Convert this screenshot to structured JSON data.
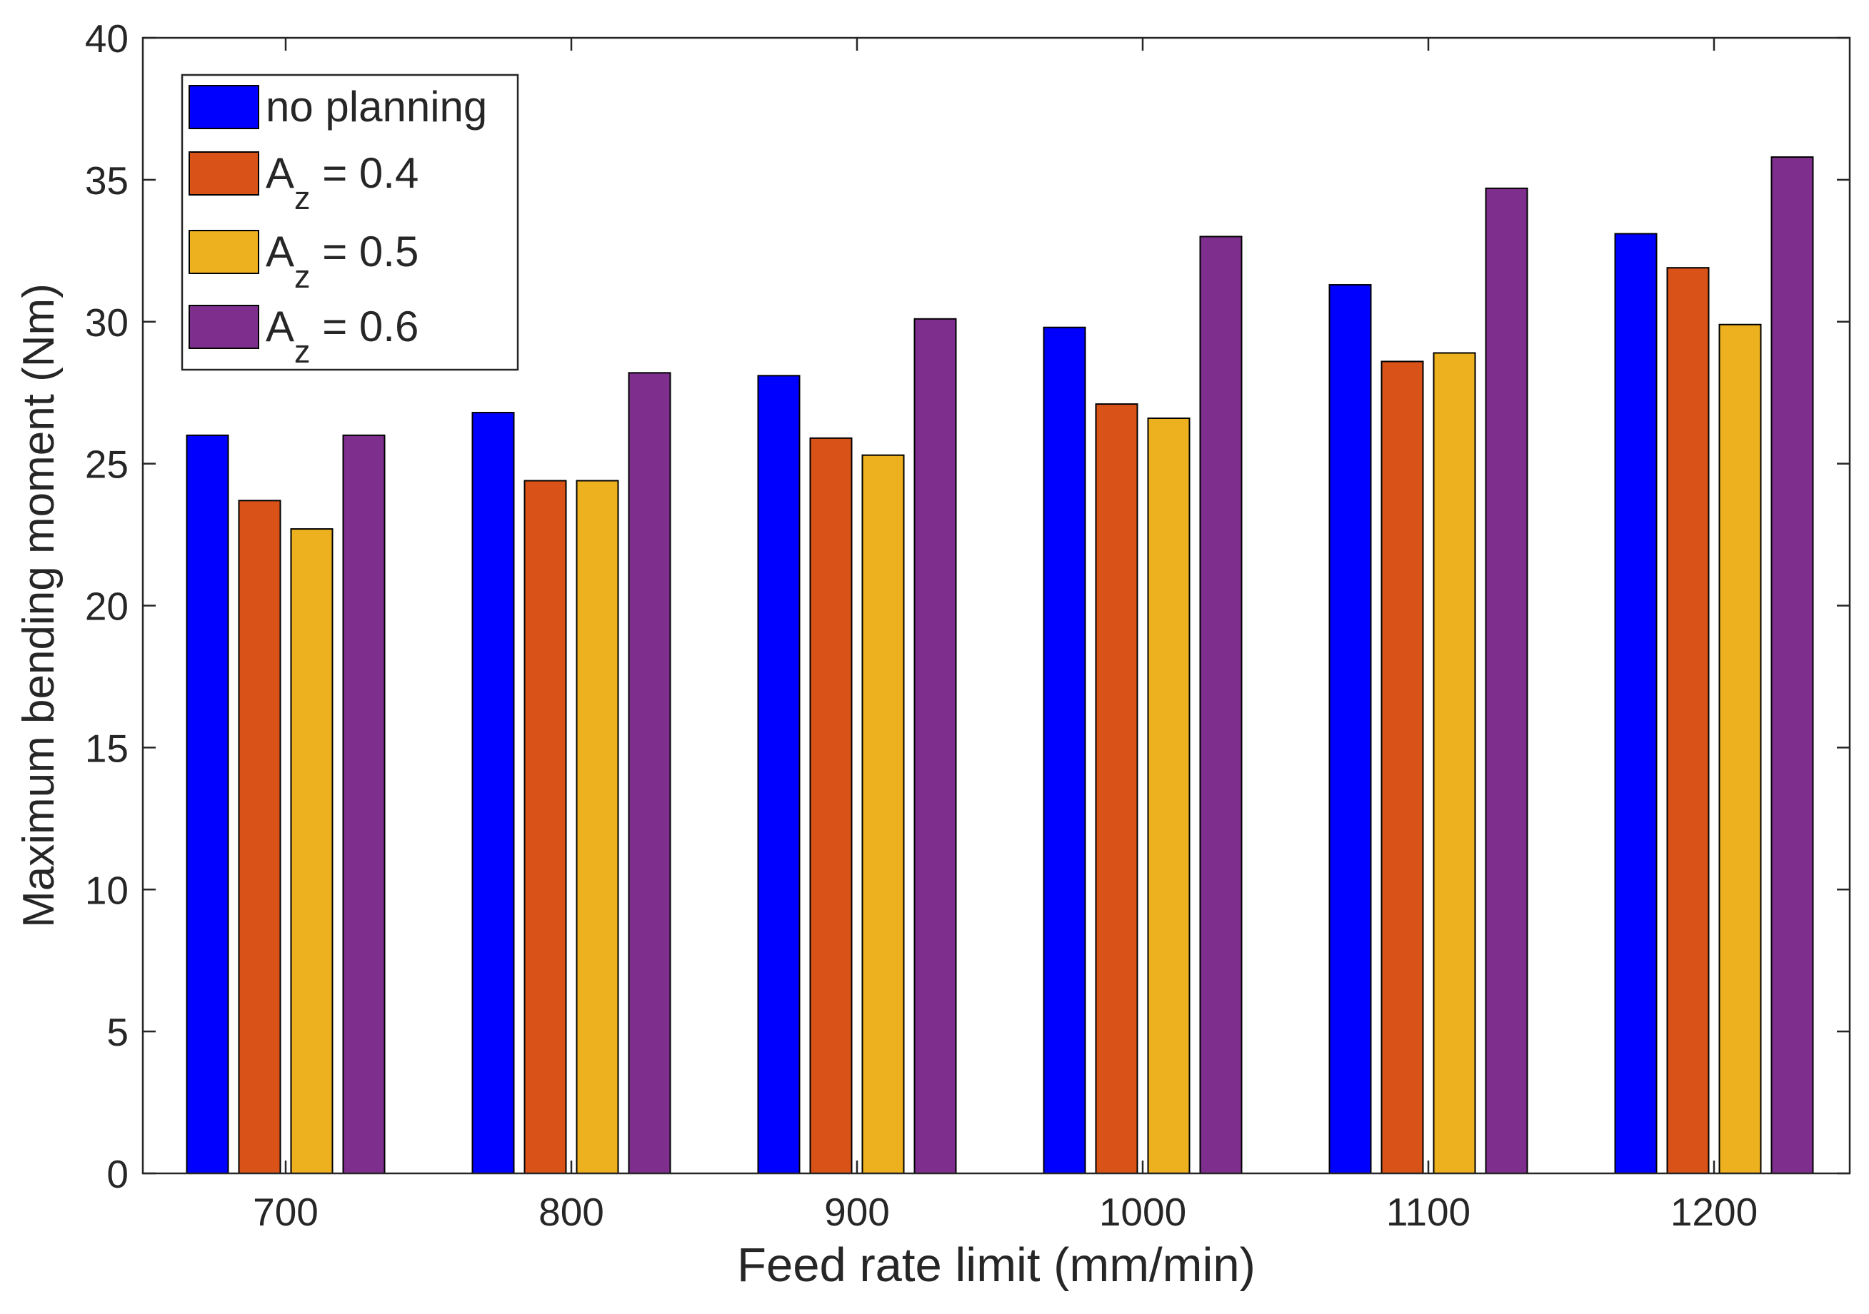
{
  "chart_data": {
    "type": "bar",
    "title": "",
    "xlabel": "Feed rate limit (mm/min)",
    "ylabel": "Maximum bending moment (Nm)",
    "categories": [
      "700",
      "800",
      "900",
      "1000",
      "1100",
      "1200"
    ],
    "ylim": [
      0,
      40
    ],
    "yticks": [
      "0",
      "5",
      "10",
      "15",
      "20",
      "25",
      "30",
      "35",
      "40"
    ],
    "grid": false,
    "legend_position": "top-left",
    "series": [
      {
        "name": "no planning",
        "legend_main": "no planning",
        "legend_sub": "",
        "legend_rest": "",
        "color": "#0000ff",
        "values": [
          26.0,
          26.8,
          28.1,
          29.8,
          31.3,
          33.1
        ]
      },
      {
        "name": "A_z = 0.4",
        "legend_main": "A",
        "legend_sub": "z",
        "legend_rest": " = 0.4",
        "color": "#d95319",
        "values": [
          23.7,
          24.4,
          25.9,
          27.1,
          28.6,
          31.9
        ]
      },
      {
        "name": "A_z = 0.5",
        "legend_main": "A",
        "legend_sub": "z",
        "legend_rest": " = 0.5",
        "color": "#edb120",
        "values": [
          22.7,
          24.4,
          25.3,
          26.6,
          28.9,
          29.9
        ]
      },
      {
        "name": "A_z = 0.6",
        "legend_main": "A",
        "legend_sub": "z",
        "legend_rest": " = 0.6",
        "color": "#7e2f8e",
        "values": [
          26.0,
          28.2,
          30.1,
          33.0,
          34.7,
          35.8
        ]
      }
    ]
  }
}
